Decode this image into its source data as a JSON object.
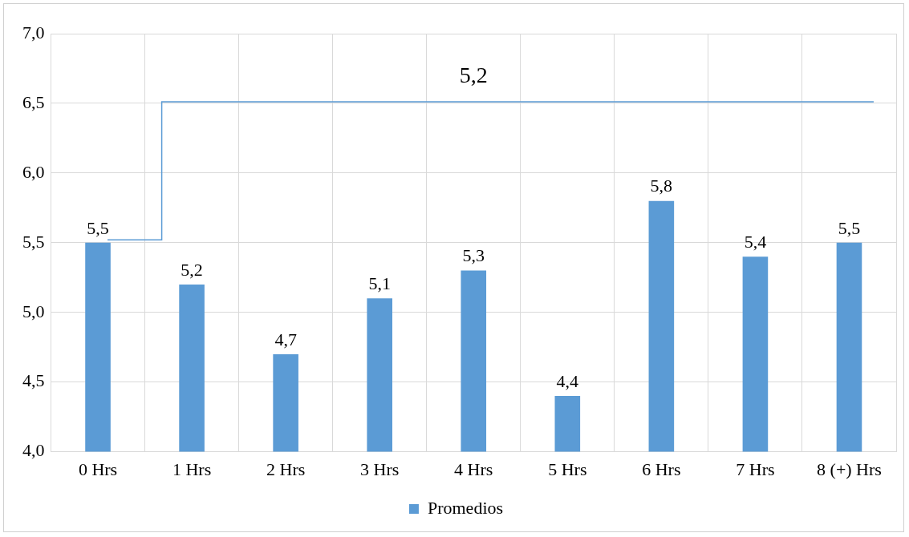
{
  "chart_data": {
    "type": "bar",
    "categories": [
      "0 Hrs",
      "1 Hrs",
      "2 Hrs",
      "3 Hrs",
      "4 Hrs",
      "5 Hrs",
      "6 Hrs",
      "7 Hrs",
      "8 (+) Hrs"
    ],
    "series": [
      {
        "name": "Promedios",
        "color": "#5b9bd5",
        "values": [
          5.5,
          5.2,
          4.7,
          5.1,
          5.3,
          4.4,
          5.8,
          5.4,
          5.5
        ],
        "value_labels": [
          "5,5",
          "5,2",
          "4,7",
          "5,1",
          "5,3",
          "4,4",
          "5,8",
          "5,4",
          "5,5"
        ]
      }
    ],
    "ylim": [
      4.0,
      7.0
    ],
    "yticks": [
      {
        "value": 4.0,
        "label": "4,0"
      },
      {
        "value": 4.5,
        "label": "4,5"
      },
      {
        "value": 5.0,
        "label": "5,0"
      },
      {
        "value": 5.5,
        "label": "5,5"
      },
      {
        "value": 6.0,
        "label": "6,0"
      },
      {
        "value": 6.5,
        "label": "6,5"
      },
      {
        "value": 7.0,
        "label": "7,0"
      }
    ],
    "annotations": [
      "5,2"
    ],
    "grid": true,
    "legend": "bottom"
  }
}
